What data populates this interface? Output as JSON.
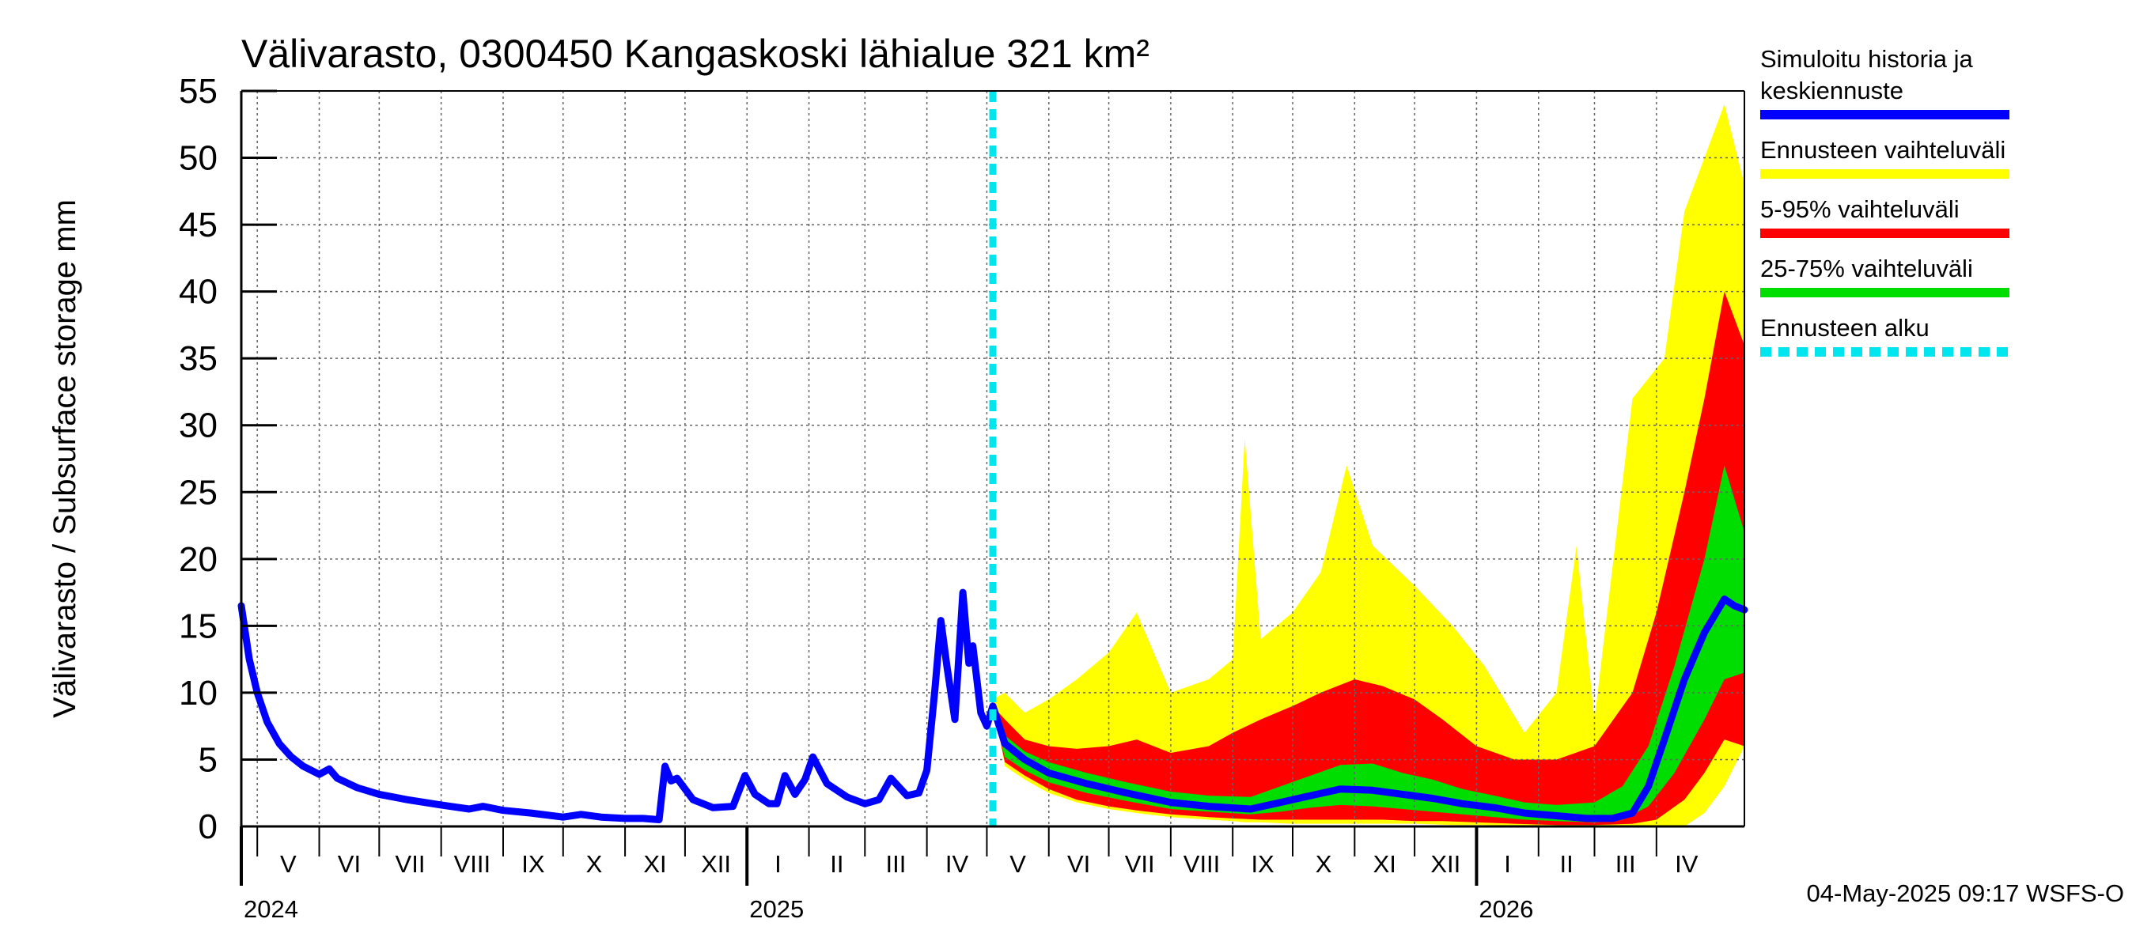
{
  "chart_data": {
    "type": "area",
    "title": "Välivarasto, 0300450 Kangaskoski lähialue 321 km²",
    "ylabel": "Välivarasto / Subsurface storage  mm",
    "ylim": [
      0,
      55
    ],
    "yticks": [
      "0",
      "5",
      "10",
      "15",
      "20",
      "25",
      "30",
      "35",
      "40",
      "45",
      "50",
      "55"
    ],
    "grid": true,
    "legend_position": "right",
    "x_start": "2024-04-23",
    "x_end": "2026-05-15",
    "forecast_start": "2025-05-04",
    "months": [
      {
        "label": "V",
        "start": "2024-05-01",
        "end": "2024-06-01"
      },
      {
        "label": "VI",
        "start": "2024-06-01",
        "end": "2024-07-01"
      },
      {
        "label": "VII",
        "start": "2024-07-01",
        "end": "2024-08-01"
      },
      {
        "label": "VIII",
        "start": "2024-08-01",
        "end": "2024-09-01"
      },
      {
        "label": "IX",
        "start": "2024-09-01",
        "end": "2024-10-01"
      },
      {
        "label": "X",
        "start": "2024-10-01",
        "end": "2024-11-01"
      },
      {
        "label": "XI",
        "start": "2024-11-01",
        "end": "2024-12-01"
      },
      {
        "label": "XII",
        "start": "2024-12-01",
        "end": "2025-01-01"
      },
      {
        "label": "I",
        "start": "2025-01-01",
        "end": "2025-02-01"
      },
      {
        "label": "II",
        "start": "2025-02-01",
        "end": "2025-03-01"
      },
      {
        "label": "III",
        "start": "2025-03-01",
        "end": "2025-04-01"
      },
      {
        "label": "IV",
        "start": "2025-04-01",
        "end": "2025-05-01"
      },
      {
        "label": "V",
        "start": "2025-05-01",
        "end": "2025-06-01"
      },
      {
        "label": "VI",
        "start": "2025-06-01",
        "end": "2025-07-01"
      },
      {
        "label": "VII",
        "start": "2025-07-01",
        "end": "2025-08-01"
      },
      {
        "label": "VIII",
        "start": "2025-08-01",
        "end": "2025-09-01"
      },
      {
        "label": "IX",
        "start": "2025-09-01",
        "end": "2025-10-01"
      },
      {
        "label": "X",
        "start": "2025-10-01",
        "end": "2025-11-01"
      },
      {
        "label": "XI",
        "start": "2025-11-01",
        "end": "2025-12-01"
      },
      {
        "label": "XII",
        "start": "2025-12-01",
        "end": "2026-01-01"
      },
      {
        "label": "I",
        "start": "2026-01-01",
        "end": "2026-02-01"
      },
      {
        "label": "II",
        "start": "2026-02-01",
        "end": "2026-03-01"
      },
      {
        "label": "III",
        "start": "2026-03-01",
        "end": "2026-04-01"
      },
      {
        "label": "IV",
        "start": "2026-04-01",
        "end": "2026-05-01"
      }
    ],
    "years": [
      {
        "label": "2024",
        "date": "2024-04-23"
      },
      {
        "label": "2025",
        "date": "2025-01-01"
      },
      {
        "label": "2026",
        "date": "2026-01-01"
      }
    ],
    "legend": [
      {
        "label": "Simuloitu historia ja keskiennuste",
        "lines": [
          "Simuloitu historia ja",
          "keskiennuste"
        ],
        "color": "#0000ff",
        "style": "solid"
      },
      {
        "label": "Ennusteen vaihteluväli",
        "lines": [
          "Ennusteen vaihteluväli"
        ],
        "color": "#ffff00",
        "style": "solid"
      },
      {
        "label": "5-95% vaihteluväli",
        "lines": [
          "5-95% vaihteluväli"
        ],
        "color": "#ff0000",
        "style": "solid"
      },
      {
        "label": "25-75% vaihteluväli",
        "lines": [
          "25-75% vaihteluväli"
        ],
        "color": "#00dd00",
        "style": "solid"
      },
      {
        "label": "Ennusteen alku",
        "lines": [
          "Ennusteen alku"
        ],
        "color": "#00e5ee",
        "style": "dashed"
      }
    ],
    "series": [
      {
        "name": "Simuloitu historia ja keskiennuste",
        "color": "#0000ff",
        "points": [
          [
            "2024-04-23",
            16.5
          ],
          [
            "2024-04-27",
            12.5
          ],
          [
            "2024-05-01",
            10.0
          ],
          [
            "2024-05-06",
            7.8
          ],
          [
            "2024-05-12",
            6.2
          ],
          [
            "2024-05-18",
            5.2
          ],
          [
            "2024-05-24",
            4.5
          ],
          [
            "2024-06-01",
            3.9
          ],
          [
            "2024-06-06",
            4.3
          ],
          [
            "2024-06-10",
            3.6
          ],
          [
            "2024-06-20",
            2.9
          ],
          [
            "2024-07-01",
            2.4
          ],
          [
            "2024-07-15",
            2.0
          ],
          [
            "2024-08-01",
            1.6
          ],
          [
            "2024-08-15",
            1.3
          ],
          [
            "2024-08-22",
            1.5
          ],
          [
            "2024-09-01",
            1.2
          ],
          [
            "2024-09-15",
            1.0
          ],
          [
            "2024-10-01",
            0.7
          ],
          [
            "2024-10-10",
            0.9
          ],
          [
            "2024-10-20",
            0.7
          ],
          [
            "2024-11-01",
            0.6
          ],
          [
            "2024-11-10",
            0.6
          ],
          [
            "2024-11-18",
            0.5
          ],
          [
            "2024-11-21",
            4.5
          ],
          [
            "2024-11-24",
            3.4
          ],
          [
            "2024-11-27",
            3.6
          ],
          [
            "2024-12-05",
            2.0
          ],
          [
            "2024-12-15",
            1.4
          ],
          [
            "2024-12-25",
            1.5
          ],
          [
            "2024-12-31",
            3.8
          ],
          [
            "2025-01-05",
            2.4
          ],
          [
            "2025-01-12",
            1.7
          ],
          [
            "2025-01-16",
            1.7
          ],
          [
            "2025-01-20",
            3.8
          ],
          [
            "2025-01-25",
            2.4
          ],
          [
            "2025-01-30",
            3.5
          ],
          [
            "2025-02-03",
            5.2
          ],
          [
            "2025-02-10",
            3.2
          ],
          [
            "2025-02-20",
            2.2
          ],
          [
            "2025-03-01",
            1.7
          ],
          [
            "2025-03-08",
            2.0
          ],
          [
            "2025-03-14",
            3.6
          ],
          [
            "2025-03-22",
            2.3
          ],
          [
            "2025-03-28",
            2.5
          ],
          [
            "2025-04-01",
            4.2
          ],
          [
            "2025-04-05",
            10.2
          ],
          [
            "2025-04-08",
            15.4
          ],
          [
            "2025-04-11",
            12.0
          ],
          [
            "2025-04-15",
            8.0
          ],
          [
            "2025-04-19",
            17.5
          ],
          [
            "2025-04-22",
            12.2
          ],
          [
            "2025-04-24",
            13.5
          ],
          [
            "2025-04-28",
            8.5
          ],
          [
            "2025-05-01",
            7.5
          ],
          [
            "2025-05-04",
            9.0
          ],
          [
            "2025-05-10",
            6.2
          ],
          [
            "2025-05-20",
            5.0
          ],
          [
            "2025-06-01",
            4.0
          ],
          [
            "2025-06-20",
            3.2
          ],
          [
            "2025-07-10",
            2.5
          ],
          [
            "2025-08-01",
            1.8
          ],
          [
            "2025-08-20",
            1.5
          ],
          [
            "2025-09-10",
            1.3
          ],
          [
            "2025-09-25",
            1.8
          ],
          [
            "2025-10-10",
            2.3
          ],
          [
            "2025-10-25",
            2.8
          ],
          [
            "2025-11-10",
            2.7
          ],
          [
            "2025-11-25",
            2.4
          ],
          [
            "2025-12-10",
            2.1
          ],
          [
            "2025-12-25",
            1.7
          ],
          [
            "2026-01-10",
            1.4
          ],
          [
            "2026-01-25",
            1.0
          ],
          [
            "2026-02-10",
            0.8
          ],
          [
            "2026-02-25",
            0.6
          ],
          [
            "2026-03-10",
            0.6
          ],
          [
            "2026-03-20",
            1.0
          ],
          [
            "2026-03-28",
            3.0
          ],
          [
            "2026-04-05",
            6.5
          ],
          [
            "2026-04-15",
            11.0
          ],
          [
            "2026-04-25",
            14.5
          ],
          [
            "2026-05-05",
            17.0
          ],
          [
            "2026-05-10",
            16.5
          ],
          [
            "2026-05-15",
            16.2
          ]
        ]
      }
    ],
    "bands": [
      {
        "name": "Ennusteen vaihteluväli",
        "color": "#ffff00",
        "points": [
          [
            "2025-05-04",
            9.5,
            9.5
          ],
          [
            "2025-05-10",
            10.0,
            4.5
          ],
          [
            "2025-05-20",
            8.5,
            3.5
          ],
          [
            "2025-06-01",
            9.5,
            2.5
          ],
          [
            "2025-06-15",
            11.0,
            1.8
          ],
          [
            "2025-07-01",
            13.0,
            1.3
          ],
          [
            "2025-07-15",
            16.0,
            1.0
          ],
          [
            "2025-08-01",
            10.0,
            0.7
          ],
          [
            "2025-08-20",
            11.0,
            0.5
          ],
          [
            "2025-09-01",
            12.5,
            0.4
          ],
          [
            "2025-09-07",
            29.0,
            0.3
          ],
          [
            "2025-09-15",
            14.0,
            0.3
          ],
          [
            "2025-10-01",
            16.0,
            0.2
          ],
          [
            "2025-10-15",
            19.0,
            0.2
          ],
          [
            "2025-10-28",
            27.0,
            0.2
          ],
          [
            "2025-11-10",
            21.0,
            0.2
          ],
          [
            "2025-12-01",
            18.0,
            0.2
          ],
          [
            "2025-12-20",
            15.0,
            0.1
          ],
          [
            "2026-01-05",
            12.0,
            0.1
          ],
          [
            "2026-01-25",
            7.0,
            0.0
          ],
          [
            "2026-02-10",
            10.0,
            0.0
          ],
          [
            "2026-02-20",
            21.0,
            0.0
          ],
          [
            "2026-03-01",
            8.0,
            0.0
          ],
          [
            "2026-03-20",
            32.0,
            0.0
          ],
          [
            "2026-04-05",
            35.0,
            0.0
          ],
          [
            "2026-04-15",
            46.0,
            0.0
          ],
          [
            "2026-04-25",
            50.0,
            1.0
          ],
          [
            "2026-05-05",
            54.0,
            3.0
          ],
          [
            "2026-05-15",
            48.0,
            6.0
          ]
        ]
      },
      {
        "name": "5-95% vaihteluväli",
        "color": "#ff0000",
        "points": [
          [
            "2025-05-04",
            9.0,
            9.0
          ],
          [
            "2025-05-10",
            8.0,
            4.8
          ],
          [
            "2025-05-20",
            6.5,
            3.8
          ],
          [
            "2025-06-01",
            6.0,
            2.8
          ],
          [
            "2025-06-15",
            5.8,
            2.0
          ],
          [
            "2025-07-01",
            6.0,
            1.5
          ],
          [
            "2025-07-15",
            6.5,
            1.2
          ],
          [
            "2025-08-01",
            5.5,
            0.9
          ],
          [
            "2025-08-20",
            6.0,
            0.7
          ],
          [
            "2025-09-01",
            7.0,
            0.6
          ],
          [
            "2025-09-15",
            8.0,
            0.5
          ],
          [
            "2025-10-01",
            9.0,
            0.5
          ],
          [
            "2025-10-15",
            10.0,
            0.5
          ],
          [
            "2025-11-01",
            11.0,
            0.5
          ],
          [
            "2025-11-15",
            10.5,
            0.5
          ],
          [
            "2025-12-01",
            9.5,
            0.4
          ],
          [
            "2025-12-15",
            8.0,
            0.4
          ],
          [
            "2026-01-01",
            6.0,
            0.3
          ],
          [
            "2026-01-20",
            5.0,
            0.2
          ],
          [
            "2026-02-10",
            5.0,
            0.1
          ],
          [
            "2026-03-01",
            6.0,
            0.1
          ],
          [
            "2026-03-20",
            10.0,
            0.2
          ],
          [
            "2026-04-01",
            16.0,
            0.5
          ],
          [
            "2026-04-15",
            25.0,
            2.0
          ],
          [
            "2026-04-25",
            32.0,
            4.0
          ],
          [
            "2026-05-05",
            40.0,
            6.5
          ],
          [
            "2026-05-15",
            36.0,
            6.0
          ]
        ]
      },
      {
        "name": "25-75% vaihteluväli",
        "color": "#00dd00",
        "points": [
          [
            "2025-05-04",
            8.5,
            8.5
          ],
          [
            "2025-05-10",
            6.8,
            5.2
          ],
          [
            "2025-05-20",
            5.6,
            4.2
          ],
          [
            "2025-06-01",
            4.8,
            3.3
          ],
          [
            "2025-06-20",
            4.0,
            2.5
          ],
          [
            "2025-07-10",
            3.3,
            1.9
          ],
          [
            "2025-08-01",
            2.6,
            1.3
          ],
          [
            "2025-08-20",
            2.3,
            1.1
          ],
          [
            "2025-09-10",
            2.2,
            0.9
          ],
          [
            "2025-09-25",
            3.0,
            1.1
          ],
          [
            "2025-10-10",
            3.8,
            1.4
          ],
          [
            "2025-10-25",
            4.6,
            1.6
          ],
          [
            "2025-11-10",
            4.7,
            1.5
          ],
          [
            "2025-11-25",
            4.0,
            1.3
          ],
          [
            "2025-12-10",
            3.5,
            1.1
          ],
          [
            "2025-12-25",
            2.8,
            0.9
          ],
          [
            "2026-01-10",
            2.3,
            0.7
          ],
          [
            "2026-01-25",
            1.8,
            0.5
          ],
          [
            "2026-02-10",
            1.6,
            0.4
          ],
          [
            "2026-03-01",
            1.8,
            0.3
          ],
          [
            "2026-03-15",
            3.0,
            0.5
          ],
          [
            "2026-03-28",
            6.0,
            1.5
          ],
          [
            "2026-04-10",
            12.0,
            4.0
          ],
          [
            "2026-04-25",
            20.0,
            8.0
          ],
          [
            "2026-05-05",
            27.0,
            11.0
          ],
          [
            "2026-05-15",
            22.0,
            11.5
          ]
        ]
      }
    ]
  },
  "footer": {
    "timestamp": "04-May-2025 09:17 WSFS-O"
  }
}
